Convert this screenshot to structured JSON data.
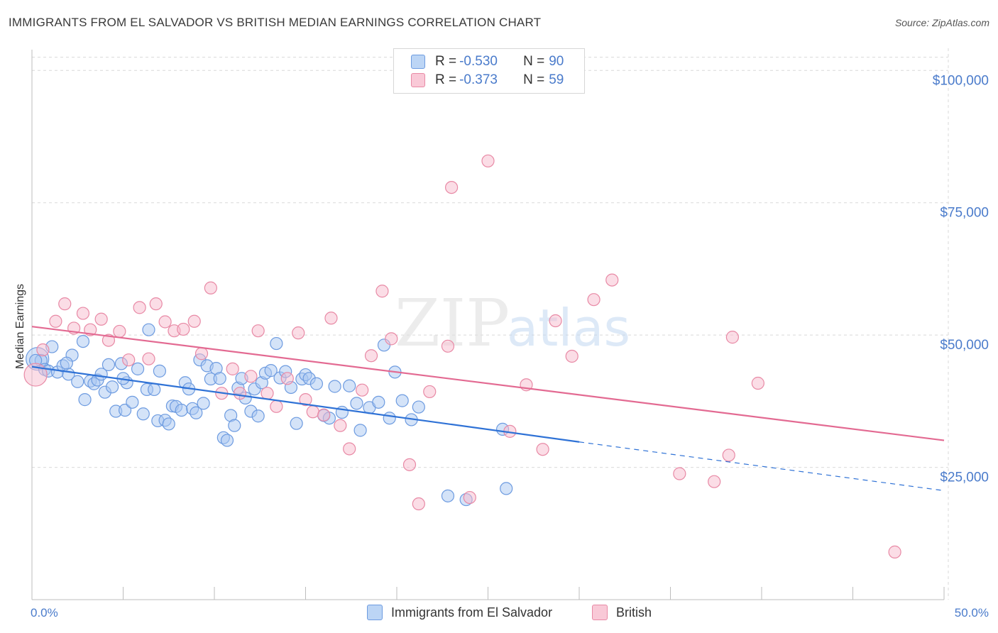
{
  "title": "IMMIGRANTS FROM EL SALVADOR VS BRITISH MEDIAN EARNINGS CORRELATION CHART",
  "source": "Source: ZipAtlas.com",
  "watermark": {
    "zip": "ZIP",
    "atlas": "atlas"
  },
  "legend": {
    "series": [
      {
        "r_label": "R = ",
        "r_value": "-0.530",
        "n_label": "N = ",
        "n_value": "90",
        "fill": "#a9c8f2",
        "stroke": "#6d9be0"
      },
      {
        "r_label": "R = ",
        "r_value": "-0.373",
        "n_label": "N = ",
        "n_value": "59",
        "fill": "#f7bccd",
        "stroke": "#e889a5"
      }
    ]
  },
  "chart_data": {
    "type": "scatter",
    "title": "IMMIGRANTS FROM EL SALVADOR VS BRITISH MEDIAN EARNINGS CORRELATION CHART",
    "ylabel": "Median Earnings",
    "xlabel": "",
    "xlim": [
      0,
      50
    ],
    "ylim": [
      0,
      105000
    ],
    "x_tick_labels": [
      "0.0%",
      "50.0%"
    ],
    "y_ticks": [
      {
        "value": 25000,
        "label": "$25,000"
      },
      {
        "value": 50000,
        "label": "$50,000"
      },
      {
        "value": 75000,
        "label": "$75,000"
      },
      {
        "value": 100000,
        "label": "$100,000"
      }
    ],
    "grid": true,
    "legend_position": "top-center",
    "series": [
      {
        "name": "Immigrants from El Salvador",
        "fill": "#a9c8f2",
        "stroke": "#6d9be0",
        "line": "#2f72d6",
        "trend": {
          "x0": 0,
          "y0": 44000,
          "x1": 30,
          "y1": 29800,
          "dash_to_x": 50,
          "dash_to_y": 20600
        },
        "points": [
          [
            0.3,
            45500
          ],
          [
            0.5,
            45200
          ],
          [
            0.7,
            43500
          ],
          [
            0.9,
            43200
          ],
          [
            1.1,
            47800
          ],
          [
            1.4,
            43000
          ],
          [
            1.7,
            44200
          ],
          [
            2.0,
            42600
          ],
          [
            2.2,
            46200
          ],
          [
            2.5,
            41200
          ],
          [
            2.8,
            48800
          ],
          [
            2.9,
            37800
          ],
          [
            3.2,
            41300
          ],
          [
            3.4,
            40800
          ],
          [
            3.6,
            41500
          ],
          [
            3.8,
            42600
          ],
          [
            4.0,
            39200
          ],
          [
            4.2,
            44400
          ],
          [
            4.4,
            40200
          ],
          [
            4.6,
            35600
          ],
          [
            4.9,
            44600
          ],
          [
            5.1,
            35800
          ],
          [
            5.2,
            41000
          ],
          [
            5.5,
            37300
          ],
          [
            5.8,
            43600
          ],
          [
            6.1,
            35100
          ],
          [
            6.3,
            39700
          ],
          [
            6.4,
            51000
          ],
          [
            6.7,
            39700
          ],
          [
            6.9,
            33800
          ],
          [
            7.0,
            43200
          ],
          [
            7.3,
            33900
          ],
          [
            7.5,
            33200
          ],
          [
            7.7,
            36600
          ],
          [
            7.9,
            36500
          ],
          [
            8.2,
            35800
          ],
          [
            8.4,
            41000
          ],
          [
            8.6,
            39800
          ],
          [
            8.8,
            36100
          ],
          [
            9.0,
            35300
          ],
          [
            9.2,
            45300
          ],
          [
            9.4,
            37100
          ],
          [
            9.6,
            44200
          ],
          [
            9.8,
            41700
          ],
          [
            10.1,
            43700
          ],
          [
            10.3,
            41800
          ],
          [
            10.5,
            30600
          ],
          [
            10.7,
            30100
          ],
          [
            10.9,
            34800
          ],
          [
            11.1,
            32900
          ],
          [
            11.3,
            40000
          ],
          [
            11.5,
            41800
          ],
          [
            11.7,
            38100
          ],
          [
            12.0,
            35600
          ],
          [
            12.2,
            39800
          ],
          [
            12.4,
            34700
          ],
          [
            12.6,
            41000
          ],
          [
            12.8,
            42800
          ],
          [
            13.1,
            43300
          ],
          [
            13.4,
            48400
          ],
          [
            13.6,
            41900
          ],
          [
            13.9,
            43100
          ],
          [
            14.2,
            40100
          ],
          [
            14.5,
            33300
          ],
          [
            14.8,
            41700
          ],
          [
            15.0,
            42500
          ],
          [
            15.2,
            41800
          ],
          [
            15.6,
            40800
          ],
          [
            16.0,
            34800
          ],
          [
            16.3,
            34300
          ],
          [
            16.6,
            40300
          ],
          [
            17.0,
            35400
          ],
          [
            17.4,
            40400
          ],
          [
            17.8,
            37100
          ],
          [
            18.0,
            32000
          ],
          [
            18.5,
            36300
          ],
          [
            19.0,
            37300
          ],
          [
            19.3,
            48100
          ],
          [
            19.6,
            34300
          ],
          [
            19.9,
            43000
          ],
          [
            20.3,
            37600
          ],
          [
            20.8,
            34000
          ],
          [
            21.2,
            36400
          ],
          [
            22.8,
            19600
          ],
          [
            23.8,
            18900
          ],
          [
            25.8,
            32200
          ],
          [
            26.0,
            21000
          ],
          [
            1.9,
            44700
          ],
          [
            0.2,
            45200
          ],
          [
            5.0,
            41800
          ]
        ]
      },
      {
        "name": "British",
        "fill": "#f7bccd",
        "stroke": "#e889a5",
        "line": "#e36a92",
        "trend": {
          "x0": 0,
          "y0": 51600,
          "x1": 50,
          "y1": 30100
        },
        "points": [
          [
            0.2,
            42500
          ],
          [
            0.6,
            47200
          ],
          [
            1.3,
            52600
          ],
          [
            1.8,
            55900
          ],
          [
            2.3,
            51300
          ],
          [
            2.8,
            54100
          ],
          [
            3.2,
            51000
          ],
          [
            3.8,
            53000
          ],
          [
            4.2,
            49000
          ],
          [
            4.8,
            50700
          ],
          [
            5.3,
            45300
          ],
          [
            5.9,
            55200
          ],
          [
            6.4,
            45500
          ],
          [
            6.8,
            55900
          ],
          [
            7.3,
            52500
          ],
          [
            7.8,
            50800
          ],
          [
            8.3,
            51100
          ],
          [
            8.9,
            52600
          ],
          [
            9.3,
            46500
          ],
          [
            9.8,
            58900
          ],
          [
            10.4,
            39000
          ],
          [
            11.0,
            43600
          ],
          [
            11.4,
            39000
          ],
          [
            12.0,
            42200
          ],
          [
            12.4,
            50800
          ],
          [
            12.9,
            39000
          ],
          [
            13.4,
            36500
          ],
          [
            14.0,
            41800
          ],
          [
            14.6,
            50400
          ],
          [
            15.0,
            37800
          ],
          [
            15.4,
            35500
          ],
          [
            16.0,
            34900
          ],
          [
            16.4,
            53200
          ],
          [
            16.9,
            32900
          ],
          [
            17.4,
            28500
          ],
          [
            18.1,
            39600
          ],
          [
            18.6,
            46100
          ],
          [
            19.2,
            58300
          ],
          [
            19.7,
            49300
          ],
          [
            20.7,
            25500
          ],
          [
            21.2,
            18100
          ],
          [
            21.8,
            39300
          ],
          [
            22.8,
            47900
          ],
          [
            23.0,
            77900
          ],
          [
            24.0,
            19300
          ],
          [
            25.0,
            82900
          ],
          [
            26.2,
            31800
          ],
          [
            27.1,
            40600
          ],
          [
            28.0,
            28400
          ],
          [
            28.7,
            52700
          ],
          [
            29.6,
            46000
          ],
          [
            30.8,
            56700
          ],
          [
            31.8,
            60400
          ],
          [
            35.5,
            23800
          ],
          [
            37.4,
            22300
          ],
          [
            38.2,
            27300
          ],
          [
            38.4,
            49600
          ],
          [
            39.8,
            40900
          ],
          [
            47.3,
            9000
          ]
        ]
      }
    ]
  }
}
